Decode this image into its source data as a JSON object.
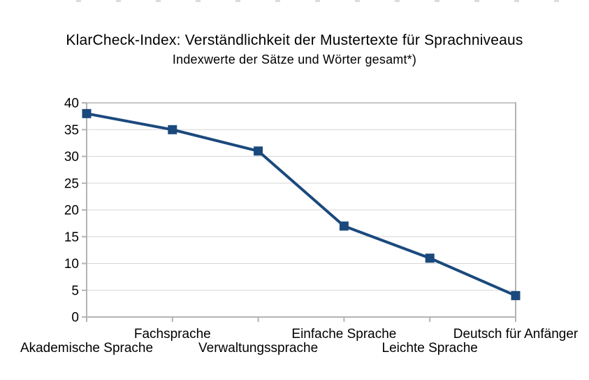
{
  "page": {
    "background": "#ffffff"
  },
  "chart_data": {
    "type": "line",
    "title": "KlarCheck-Index: Verständlichkeit der Mustertexte für Sprachniveaus",
    "subtitle": "Indexwerte der Sätze und Wörter gesamt*)",
    "categories": [
      "Akademische Sprache",
      "Fachsprache",
      "Verwaltungssprache",
      "Einfache Sprache",
      "Leichte Sprache",
      "Deutsch für Anfänger"
    ],
    "values": [
      38,
      35,
      31,
      17,
      11,
      4
    ],
    "xlabel": "",
    "ylabel": "",
    "ylim": [
      0,
      40
    ],
    "ytick_step": 5,
    "ytick_labels": [
      "0",
      "5",
      "10",
      "15",
      "20",
      "25",
      "30",
      "35",
      "40"
    ],
    "grid": "horizontal",
    "legend": "none",
    "marker": "square",
    "x_label_stagger": {
      "upper_row_indices": [
        1,
        3,
        5
      ],
      "lower_row_indices": [
        0,
        2,
        4
      ]
    },
    "colors": {
      "series": "#1b497d",
      "axis": "#b3b3b3",
      "grid": "#d6d6d6",
      "top_grid": "#c6c6c6",
      "text": "#000000"
    }
  }
}
